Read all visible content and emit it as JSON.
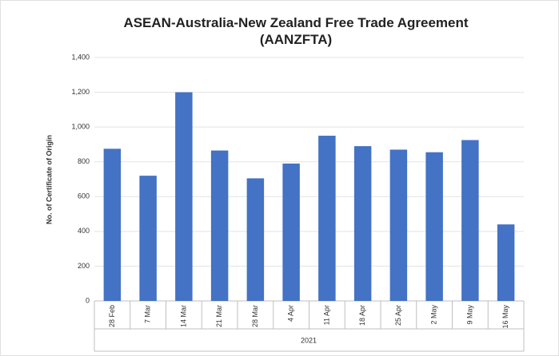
{
  "chart_data": {
    "type": "bar",
    "title": "ASEAN-Australia-New Zealand Free Trade Agreement (AANZFTA)",
    "y_label": "No. of Certificate of Origin",
    "x_label": "2021",
    "categories": [
      "28 Feb",
      "7 Mar",
      "14 Mar",
      "21 Mar",
      "28 Mar",
      "4 Apr",
      "11 Apr",
      "18 Apr",
      "25 Apr",
      "2 May",
      "9 May",
      "16 May"
    ],
    "values": [
      875,
      720,
      1200,
      865,
      705,
      790,
      950,
      890,
      870,
      855,
      925,
      440
    ],
    "color": "#4472c4",
    "ylim": [
      0,
      1400
    ],
    "yticks": [
      0,
      200,
      400,
      600,
      800,
      {
        "value": 1000,
        "label": "1,000"
      },
      {
        "value": 1200,
        "label": "1,200"
      },
      {
        "value": 1400,
        "label": "1,400"
      }
    ],
    "grid": true
  }
}
